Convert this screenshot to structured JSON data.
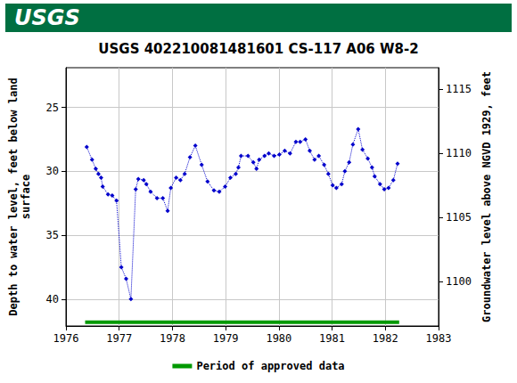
{
  "chart_data": {
    "type": "line",
    "banner": "USGS",
    "title": "USGS 402210081481601 CS-117 A06 W8-2",
    "ylabel": "Depth to water level, feet below land\nsurface",
    "y2label": "Groundwater level above NGVD 1929, feet",
    "xlim": [
      1976,
      1983
    ],
    "xticks": [
      1976,
      1977,
      1978,
      1979,
      1980,
      1981,
      1982,
      1983
    ],
    "ylim": [
      21.9,
      42.1
    ],
    "yticks": [
      25,
      30,
      35,
      40
    ],
    "y_inverted": true,
    "y2lim": [
      1096.5,
      1116.7
    ],
    "y2ticks": [
      1100,
      1105,
      1110,
      1115
    ],
    "grid": true,
    "legend": "bottom",
    "series": [
      {
        "color": "#0000cc",
        "marker": "diamond",
        "line_style": "dotted",
        "x": [
          1976.39,
          1976.49,
          1976.56,
          1976.61,
          1976.66,
          1976.69,
          1976.79,
          1976.87,
          1976.95,
          1977.04,
          1977.13,
          1977.22,
          1977.31,
          1977.36,
          1977.46,
          1977.51,
          1977.59,
          1977.71,
          1977.82,
          1977.91,
          1977.97,
          1978.07,
          1978.15,
          1978.23,
          1978.33,
          1978.43,
          1978.55,
          1978.66,
          1978.78,
          1978.88,
          1978.99,
          1979.09,
          1979.19,
          1979.24,
          1979.29,
          1979.42,
          1979.52,
          1979.58,
          1979.63,
          1979.73,
          1979.81,
          1979.91,
          1980.01,
          1980.11,
          1980.21,
          1980.32,
          1980.4,
          1980.5,
          1980.58,
          1980.67,
          1980.75,
          1980.85,
          1980.93,
          1981.01,
          1981.08,
          1981.18,
          1981.24,
          1981.32,
          1981.39,
          1981.49,
          1981.57,
          1981.67,
          1981.75,
          1981.8,
          1981.9,
          1981.98,
          1982.06,
          1982.15,
          1982.23
        ],
        "values": [
          28.1,
          29.1,
          29.8,
          30.2,
          30.5,
          31.2,
          31.8,
          31.9,
          32.3,
          37.5,
          38.4,
          40.0,
          31.4,
          30.6,
          30.7,
          31.0,
          31.6,
          32.1,
          32.1,
          33.1,
          31.3,
          30.5,
          30.7,
          30.2,
          28.9,
          28.0,
          29.5,
          30.8,
          31.5,
          31.6,
          31.2,
          30.5,
          30.2,
          29.7,
          28.8,
          28.8,
          29.3,
          29.8,
          29.1,
          28.8,
          28.6,
          28.8,
          28.7,
          28.4,
          28.6,
          27.7,
          27.7,
          27.5,
          28.4,
          29.1,
          28.8,
          29.5,
          30.2,
          31.1,
          31.3,
          31.0,
          30.0,
          29.3,
          27.9,
          26.7,
          28.3,
          29.0,
          29.7,
          30.4,
          31.0,
          31.4,
          31.3,
          30.7,
          29.4
        ]
      },
      {
        "name": "Period of approved data",
        "color": "#009900",
        "line_style": "solid",
        "x": [
          1976.36,
          1982.26
        ],
        "values": [
          41.8,
          41.8
        ]
      }
    ]
  }
}
